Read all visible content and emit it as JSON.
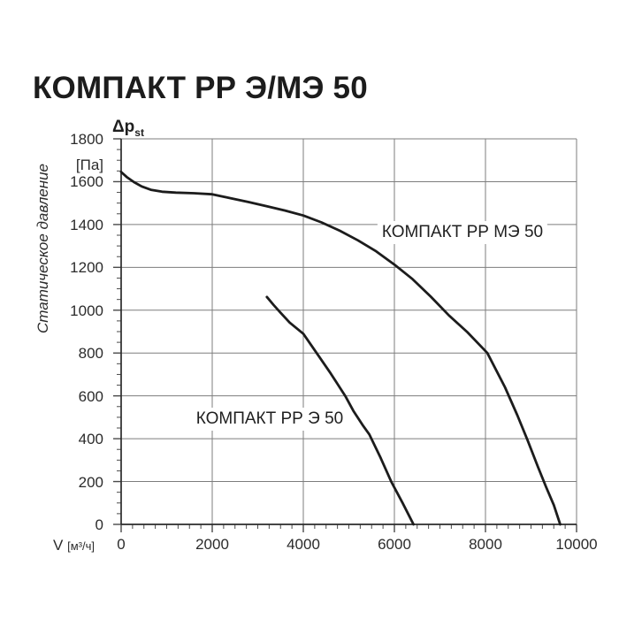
{
  "title": "КОМПАКТ РР Э/МЭ 50",
  "chart_data": {
    "type": "line",
    "title": "КОМПАКТ РР Э/МЭ 50",
    "xlabel_symbol": "V",
    "xlabel_unit": "[м³/ч]",
    "ylabel": "Статическое давление",
    "ylabel_symbol": "Δp",
    "ylabel_symbol_sub": "st",
    "ylabel_unit": "[Па]",
    "xlim": [
      0,
      10000
    ],
    "ylim": [
      0,
      1800
    ],
    "x_major_step": 2000,
    "x_minor_step": 250,
    "y_major_step": 200,
    "y_minor_step": 50,
    "grid": true,
    "legend_position": "inline-labels",
    "x_tick_labels": [
      "0",
      "2000",
      "4000",
      "6000",
      "8000",
      "10000"
    ],
    "y_tick_labels": [
      "0",
      "200",
      "400",
      "600",
      "800",
      "1000",
      "1200",
      "1400",
      "1600",
      "1800"
    ],
    "colors": {
      "curve": "#1c1c1c",
      "grid": "#7d7d7d",
      "axis": "#2b2b2b",
      "tick": "#4a4a4a",
      "text": "#2b2b2b"
    },
    "series": [
      {
        "name": "КОМПАКТ РР МЭ 50",
        "label_anchor": {
          "v": 7495,
          "p": 1362
        },
        "points": [
          [
            0,
            1645
          ],
          [
            120,
            1622
          ],
          [
            280,
            1598
          ],
          [
            450,
            1578
          ],
          [
            650,
            1562
          ],
          [
            900,
            1553
          ],
          [
            1200,
            1549
          ],
          [
            1600,
            1546
          ],
          [
            2000,
            1541
          ],
          [
            2400,
            1523
          ],
          [
            2800,
            1505
          ],
          [
            3200,
            1485
          ],
          [
            3600,
            1465
          ],
          [
            4000,
            1442
          ],
          [
            4400,
            1410
          ],
          [
            4800,
            1371
          ],
          [
            5200,
            1326
          ],
          [
            5600,
            1275
          ],
          [
            6000,
            1213
          ],
          [
            6400,
            1145
          ],
          [
            6800,
            1063
          ],
          [
            7200,
            975
          ],
          [
            7600,
            898
          ],
          [
            8040,
            800
          ],
          [
            8430,
            640
          ],
          [
            8700,
            510
          ],
          [
            8920,
            395
          ],
          [
            9150,
            270
          ],
          [
            9330,
            175
          ],
          [
            9500,
            90
          ],
          [
            9640,
            0
          ]
        ]
      },
      {
        "name": "КОМПАКТ РР Э 50",
        "label_anchor": {
          "v": 3262,
          "p": 491
        },
        "points": [
          [
            3200,
            1062
          ],
          [
            3350,
            1024
          ],
          [
            3500,
            988
          ],
          [
            3700,
            942
          ],
          [
            4000,
            890
          ],
          [
            4300,
            798
          ],
          [
            4600,
            705
          ],
          [
            4920,
            600
          ],
          [
            5100,
            530
          ],
          [
            5300,
            465
          ],
          [
            5450,
            420
          ],
          [
            5700,
            310
          ],
          [
            5930,
            200
          ],
          [
            6180,
            100
          ],
          [
            6420,
            0
          ]
        ]
      }
    ]
  }
}
